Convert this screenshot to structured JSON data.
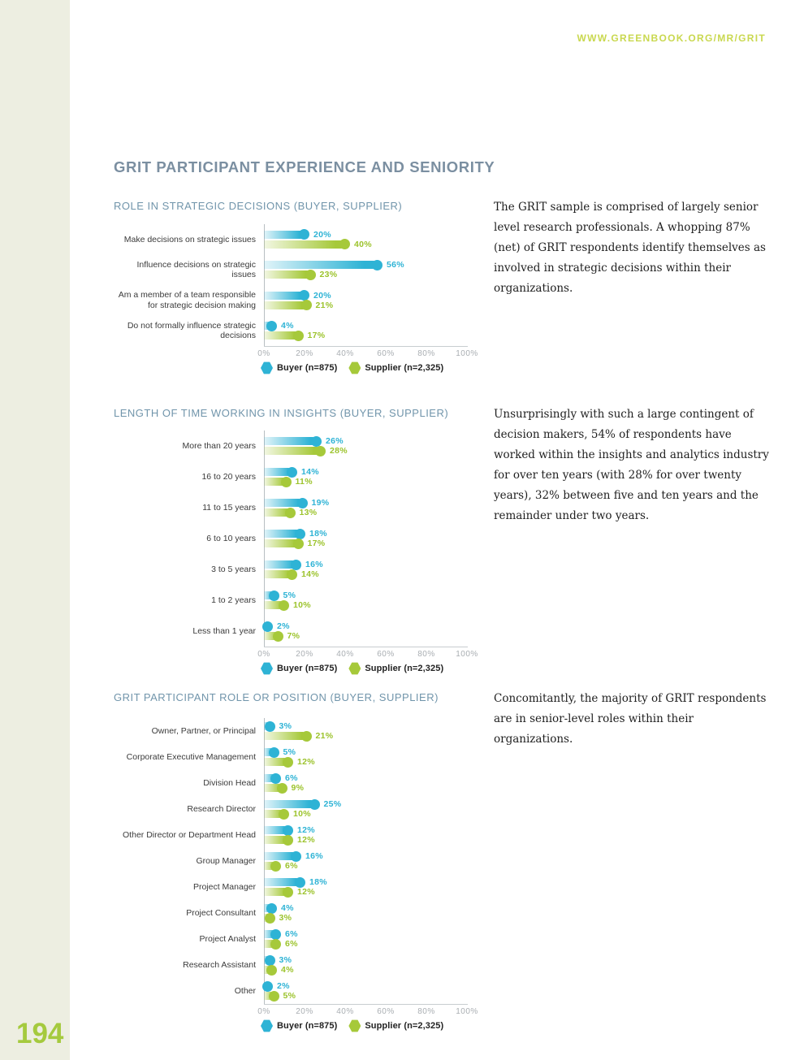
{
  "page": {
    "url": "WWW.GREENBOOK.ORG/MR/GRIT",
    "page_number": "194",
    "title": "GRIT PARTICIPANT EXPERIENCE AND SENIORITY"
  },
  "colors": {
    "buyer": "#2eb3d5",
    "supplier": "#a6c93a",
    "url_accent": "#c9d84f",
    "heading_blue": "#7195ab",
    "title_blue_gray": "#7b8fa1",
    "page_number_green": "#a5ca3e",
    "sidebar_background": "#edeee1"
  },
  "legend": {
    "buyer_label": "Buyer (n=875)",
    "supplier_label": "Supplier (n=2,325)"
  },
  "sections": [
    {
      "heading": "ROLE IN STRATEGIC DECISIONS (BUYER, SUPPLIER)",
      "paragraph": "The GRIT sample is comprised of largely senior level research professionals. A whopping 87% (net) of GRIT respondents identify themselves as involved in strategic decisions within their organizations."
    },
    {
      "heading": "LENGTH OF TIME WORKING IN INSIGHTS (BUYER, SUPPLIER)",
      "paragraph": "Unsurprisingly with such a large contingent of decision makers, 54% of respondents have worked within the insights and analytics industry for over ten years (with 28% for over twenty years), 32% between five and ten years and the remainder under two years."
    },
    {
      "heading": "GRIT PARTICIPANT ROLE OR POSITION (BUYER, SUPPLIER)",
      "paragraph": "Concomitantly, the majority of GRIT respondents are in senior-level roles within their organizations."
    }
  ],
  "chart_data": [
    {
      "type": "bar",
      "title": "ROLE IN STRATEGIC DECISIONS (BUYER, SUPPLIER)",
      "orientation": "horizontal",
      "categories": [
        "Make decisions on strategic issues",
        "Influence decisions on strategic issues",
        "Am a member of a team responsible for strategic decision making",
        "Do not formally influence strategic decisions"
      ],
      "series": [
        {
          "name": "Buyer (n=875)",
          "values": [
            20,
            56,
            20,
            4
          ]
        },
        {
          "name": "Supplier (n=2,325)",
          "values": [
            40,
            23,
            21,
            17
          ]
        }
      ],
      "value_suffix": "%",
      "xlim": [
        0,
        100
      ],
      "x_ticks": [
        "0%",
        "20%",
        "40%",
        "60%",
        "80%",
        "100%"
      ],
      "legend_position": "bottom",
      "grid": false
    },
    {
      "type": "bar",
      "title": "LENGTH OF TIME WORKING IN INSIGHTS (BUYER, SUPPLIER)",
      "orientation": "horizontal",
      "categories": [
        "More than 20 years",
        "16 to 20 years",
        "11 to 15 years",
        "6 to 10 years",
        "3 to 5 years",
        "1 to 2 years",
        "Less than 1 year"
      ],
      "series": [
        {
          "name": "Buyer (n=875)",
          "values": [
            26,
            14,
            19,
            18,
            16,
            5,
            2
          ]
        },
        {
          "name": "Supplier (n=2,325)",
          "values": [
            28,
            11,
            13,
            17,
            14,
            10,
            7
          ]
        }
      ],
      "value_suffix": "%",
      "xlim": [
        0,
        100
      ],
      "x_ticks": [
        "0%",
        "20%",
        "40%",
        "60%",
        "80%",
        "100%"
      ],
      "legend_position": "bottom",
      "grid": false
    },
    {
      "type": "bar",
      "title": "GRIT PARTICIPANT ROLE OR POSITION (BUYER, SUPPLIER)",
      "orientation": "horizontal",
      "categories": [
        "Owner, Partner, or Principal",
        "Corporate Executive Management",
        "Division Head",
        "Research Director",
        "Other Director or Department Head",
        "Group Manager",
        "Project Manager",
        "Project Consultant",
        "Project Analyst",
        "Research Assistant",
        "Other"
      ],
      "series": [
        {
          "name": "Buyer (n=875)",
          "values": [
            3,
            5,
            6,
            25,
            12,
            16,
            18,
            4,
            6,
            3,
            2
          ]
        },
        {
          "name": "Supplier (n=2,325)",
          "values": [
            21,
            12,
            9,
            10,
            12,
            6,
            12,
            3,
            6,
            4,
            5
          ]
        }
      ],
      "value_suffix": "%",
      "xlim": [
        0,
        100
      ],
      "x_ticks": [
        "0%",
        "20%",
        "40%",
        "60%",
        "80%",
        "100%"
      ],
      "legend_position": "bottom",
      "grid": false
    }
  ]
}
